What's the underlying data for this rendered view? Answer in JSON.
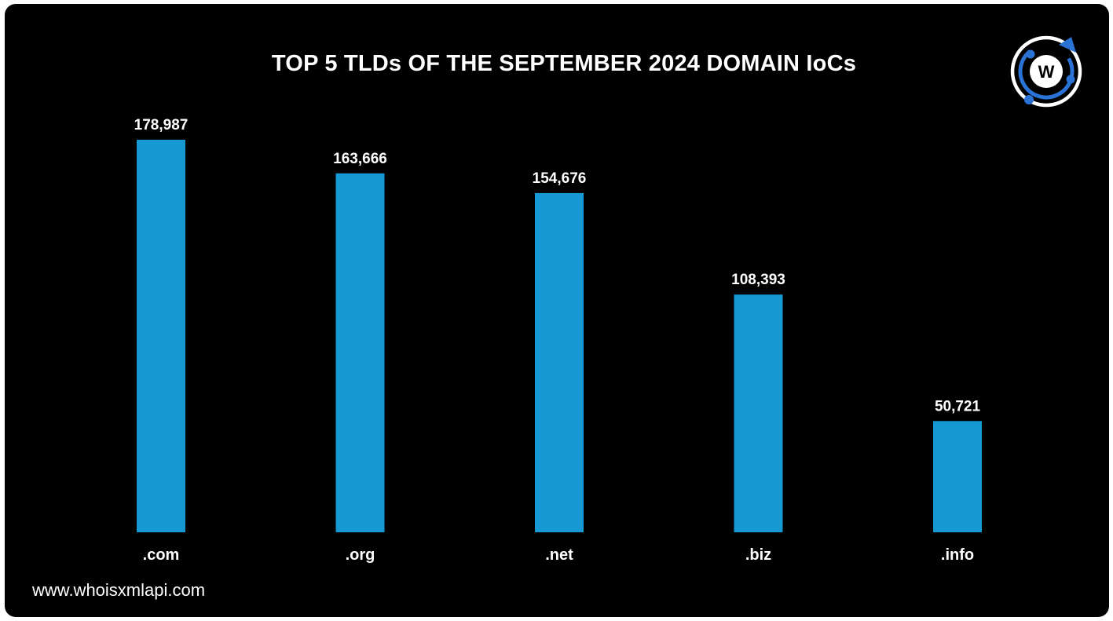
{
  "chart_data": {
    "type": "bar",
    "title": "TOP 5 TLDs OF THE SEPTEMBER 2024 DOMAIN IoCs",
    "categories": [
      ".com",
      ".org",
      ".net",
      ".biz",
      ".info"
    ],
    "values": [
      178987,
      163666,
      154676,
      108393,
      50721
    ],
    "value_labels": [
      "178,987",
      "163,666",
      "154,676",
      "108,393",
      "50,721"
    ],
    "bar_color": "#1699d3",
    "background_color": "#000000",
    "grid": false,
    "legend": "none"
  },
  "footer": {
    "source": "www.whoisxmlapi.com"
  },
  "logo": {
    "icon": "whoisxmlapi-logo-icon",
    "letter": "W"
  }
}
